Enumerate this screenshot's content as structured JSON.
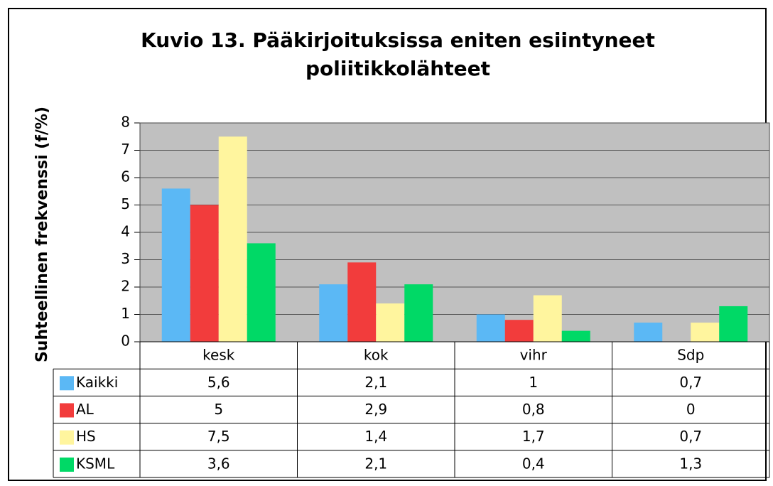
{
  "chart_data": {
    "type": "bar",
    "title": [
      "Kuvio 13. Pääkirjoituksissa eniten esiintyneet",
      "poliitikkolähteet"
    ],
    "y_label": "Suhteellinen frekvenssi (f/%)",
    "categories": [
      "kesk",
      "kok",
      "vihr",
      "Sdp"
    ],
    "series": [
      {
        "name": "Kaikki",
        "color": "#5bb8f5",
        "values": [
          5.6,
          2.1,
          1,
          0.7
        ],
        "value_labels": [
          "5,6",
          "2,1",
          "1",
          "0,7"
        ]
      },
      {
        "name": "AL",
        "color": "#f23c3c",
        "values": [
          5,
          2.9,
          0.8,
          0
        ],
        "value_labels": [
          "5",
          "2,9",
          "0,8",
          "0"
        ]
      },
      {
        "name": "HS",
        "color": "#fff59e",
        "values": [
          7.5,
          1.4,
          1.7,
          0.7
        ],
        "value_labels": [
          "7,5",
          "1,4",
          "1,7",
          "0,7"
        ]
      },
      {
        "name": "KSML",
        "color": "#00d966",
        "values": [
          3.6,
          2.1,
          0.4,
          1.3
        ],
        "value_labels": [
          "3,6",
          "2,1",
          "0,4",
          "1,3"
        ]
      }
    ],
    "ylim": [
      0,
      8
    ],
    "yticks": [
      0,
      1,
      2,
      3,
      4,
      5,
      6,
      7,
      8
    ],
    "grid": true
  }
}
